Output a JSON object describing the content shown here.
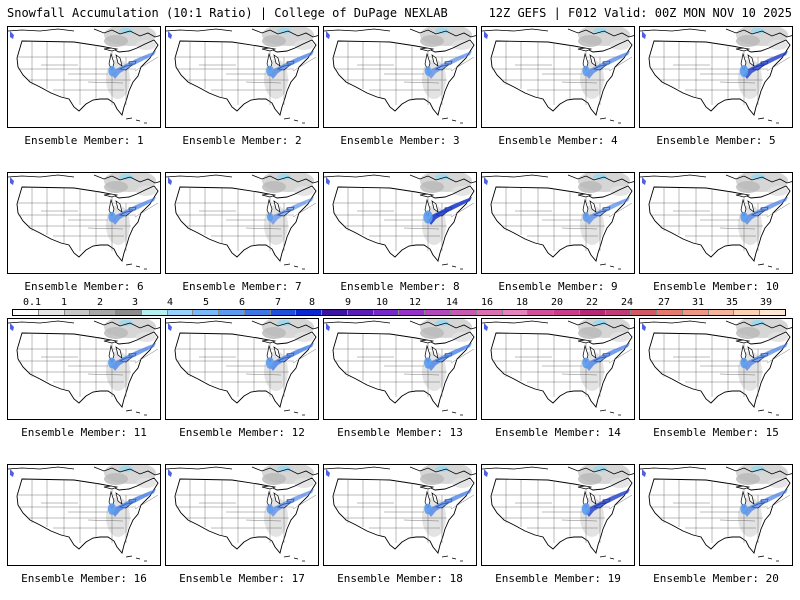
{
  "header": {
    "left": "Snowfall Accumulation (10:1 Ratio) | College of DuPage NEXLAB",
    "right": "12Z GEFS | F012 Valid: 00Z MON NOV 10 2025"
  },
  "panels": [
    {
      "label": "Ensemble Member: 1",
      "intensity": 0.55
    },
    {
      "label": "Ensemble Member: 2",
      "intensity": 0.6
    },
    {
      "label": "Ensemble Member: 3",
      "intensity": 0.45
    },
    {
      "label": "Ensemble Member: 4",
      "intensity": 0.55
    },
    {
      "label": "Ensemble Member: 5",
      "intensity": 0.75
    },
    {
      "label": "Ensemble Member: 6",
      "intensity": 0.55
    },
    {
      "label": "Ensemble Member: 7",
      "intensity": 0.35
    },
    {
      "label": "Ensemble Member: 8",
      "intensity": 0.9
    },
    {
      "label": "Ensemble Member: 9",
      "intensity": 0.45
    },
    {
      "label": "Ensemble Member: 10",
      "intensity": 0.55
    },
    {
      "label": "Ensemble Member: 11",
      "intensity": 0.6
    },
    {
      "label": "Ensemble Member: 12",
      "intensity": 0.7
    },
    {
      "label": "Ensemble Member: 13",
      "intensity": 0.65
    },
    {
      "label": "Ensemble Member: 14",
      "intensity": 0.6
    },
    {
      "label": "Ensemble Member: 15",
      "intensity": 0.55
    },
    {
      "label": "Ensemble Member: 16",
      "intensity": 0.7
    },
    {
      "label": "Ensemble Member: 17",
      "intensity": 0.45
    },
    {
      "label": "Ensemble Member: 18",
      "intensity": 0.6
    },
    {
      "label": "Ensemble Member: 19",
      "intensity": 0.75
    },
    {
      "label": "Ensemble Member: 20",
      "intensity": 0.55
    }
  ],
  "colorbar": {
    "ticks": [
      "0.1",
      "1",
      "2",
      "3",
      "4",
      "5",
      "6",
      "7",
      "8",
      "9",
      "10",
      "12",
      "14",
      "16",
      "18",
      "20",
      "22",
      "24",
      "27",
      "31",
      "35",
      "39"
    ],
    "colors": [
      "#ffffff",
      "#e6e6e6",
      "#c8c8c8",
      "#a8a8a8",
      "#8c8c8c",
      "#b4f0f0",
      "#96d2fa",
      "#78b9fa",
      "#5a9bf0",
      "#3c78e6",
      "#1e50dc",
      "#0a28d2",
      "#3c14a0",
      "#5a1eb4",
      "#7828c8",
      "#9632c8",
      "#b446be",
      "#c85ab4",
      "#dc6eb4",
      "#e682be",
      "#d2509b",
      "#c83c8c",
      "#b42878",
      "#be3c78",
      "#d25a64",
      "#e6786e",
      "#f09682",
      "#f5b49b",
      "#fad2b4",
      "#fde6d2"
    ]
  }
}
